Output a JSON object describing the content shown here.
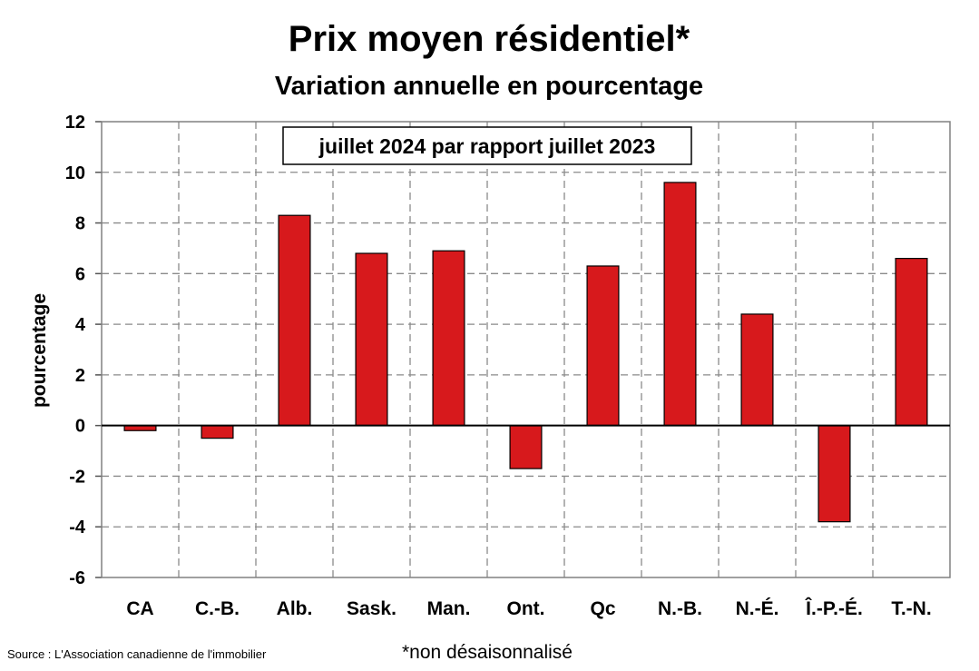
{
  "chart_data": {
    "type": "bar",
    "title": "Prix moyen résidentiel*",
    "subtitle": "Variation annuelle en pourcentage",
    "annotation": "juillet 2024 par rapport juillet 2023",
    "ylabel": "pourcentage",
    "xlabel": "",
    "ylim": [
      -6,
      12
    ],
    "yticks": [
      12,
      10,
      8,
      6,
      4,
      2,
      0,
      -2,
      -4,
      -6
    ],
    "grid": true,
    "categories": [
      "CA",
      "C.-B.",
      "Alb.",
      "Sask.",
      "Man.",
      "Ont.",
      "Qc",
      "N.-B.",
      "N.-É.",
      "Î.-P.-É.",
      "T.-N."
    ],
    "values": [
      -0.2,
      -0.5,
      8.3,
      6.8,
      6.9,
      -1.7,
      6.3,
      9.6,
      4.4,
      -3.8,
      6.6
    ],
    "bar_color": "#d7191c"
  },
  "footnote": "*non désaisonnalisé",
  "source": "Source : L'Association canadienne de l'immobilier"
}
